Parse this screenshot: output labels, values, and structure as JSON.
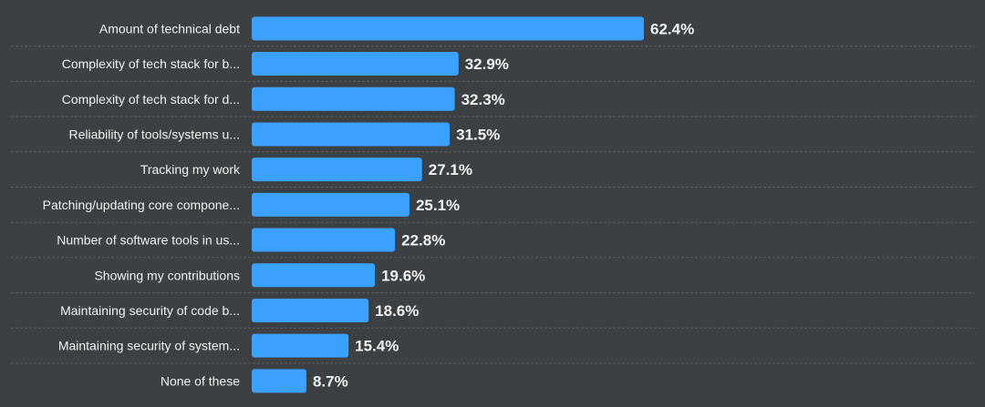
{
  "chart_data": {
    "type": "bar",
    "orientation": "horizontal",
    "categories": [
      "Amount of technical debt",
      "Complexity of tech stack for b...",
      "Complexity of tech stack for d...",
      "Reliability of tools/systems u...",
      "Tracking my work",
      "Patching/updating core compone...",
      "Number of software tools in us...",
      "Showing my contributions",
      "Maintaining security of code b...",
      "Maintaining security of system...",
      "None of these"
    ],
    "values": [
      62.4,
      32.9,
      32.3,
      31.5,
      27.1,
      25.1,
      22.8,
      19.6,
      18.6,
      15.4,
      8.7
    ],
    "value_labels": [
      "62.4%",
      "32.9%",
      "32.3%",
      "31.5%",
      "27.1%",
      "25.1%",
      "22.8%",
      "19.6%",
      "18.6%",
      "15.4%",
      "8.7%"
    ],
    "unit": "%",
    "xlim": [
      0,
      62.4
    ],
    "grid": false,
    "colors": {
      "background": "#3c4043",
      "bar": "#3ba1ff",
      "text": "#f1f3f4",
      "separator": "#5a5e62"
    }
  }
}
